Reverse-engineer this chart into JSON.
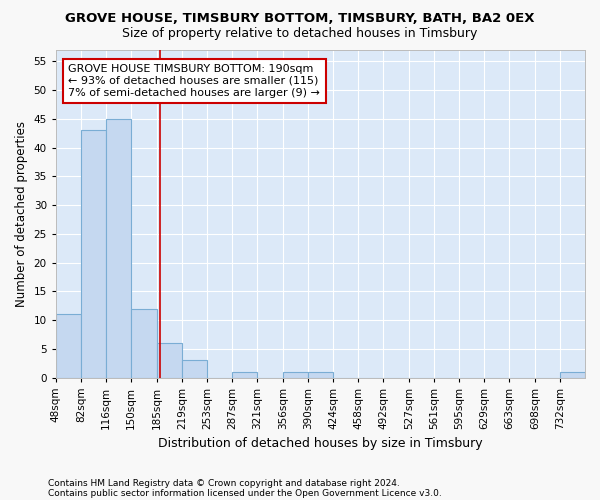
{
  "title1": "GROVE HOUSE, TIMSBURY BOTTOM, TIMSBURY, BATH, BA2 0EX",
  "title2": "Size of property relative to detached houses in Timsbury",
  "xlabel": "Distribution of detached houses by size in Timsbury",
  "ylabel": "Number of detached properties",
  "bin_labels": [
    "48sqm",
    "82sqm",
    "116sqm",
    "150sqm",
    "185sqm",
    "219sqm",
    "253sqm",
    "287sqm",
    "321sqm",
    "356sqm",
    "390sqm",
    "424sqm",
    "458sqm",
    "492sqm",
    "527sqm",
    "561sqm",
    "595sqm",
    "629sqm",
    "663sqm",
    "698sqm",
    "732sqm"
  ],
  "bin_edges": [
    48,
    82,
    116,
    150,
    185,
    219,
    253,
    287,
    321,
    356,
    390,
    424,
    458,
    492,
    527,
    561,
    595,
    629,
    663,
    698,
    732,
    766
  ],
  "values": [
    11,
    43,
    45,
    12,
    6,
    3,
    0,
    1,
    0,
    1,
    1,
    0,
    0,
    0,
    0,
    0,
    0,
    0,
    0,
    0,
    1
  ],
  "bar_color": "#c5d8f0",
  "bar_edge_color": "#7aadd4",
  "property_line_x": 190,
  "property_line_color": "#cc0000",
  "annotation_text": "GROVE HOUSE TIMSBURY BOTTOM: 190sqm\n← 93% of detached houses are smaller (115)\n7% of semi-detached houses are larger (9) →",
  "annotation_box_color": "#ffffff",
  "annotation_box_edge": "#cc0000",
  "ylim": [
    0,
    57
  ],
  "yticks": [
    0,
    5,
    10,
    15,
    20,
    25,
    30,
    35,
    40,
    45,
    50,
    55
  ],
  "footer1": "Contains HM Land Registry data © Crown copyright and database right 2024.",
  "footer2": "Contains public sector information licensed under the Open Government Licence v3.0.",
  "plot_bg_color": "#dce9f8",
  "fig_bg_color": "#f8f8f8",
  "grid_color": "#ffffff",
  "title1_fontsize": 9.5,
  "title2_fontsize": 9,
  "xlabel_fontsize": 9,
  "ylabel_fontsize": 8.5,
  "tick_fontsize": 7.5,
  "annotation_fontsize": 8,
  "footer_fontsize": 6.5
}
